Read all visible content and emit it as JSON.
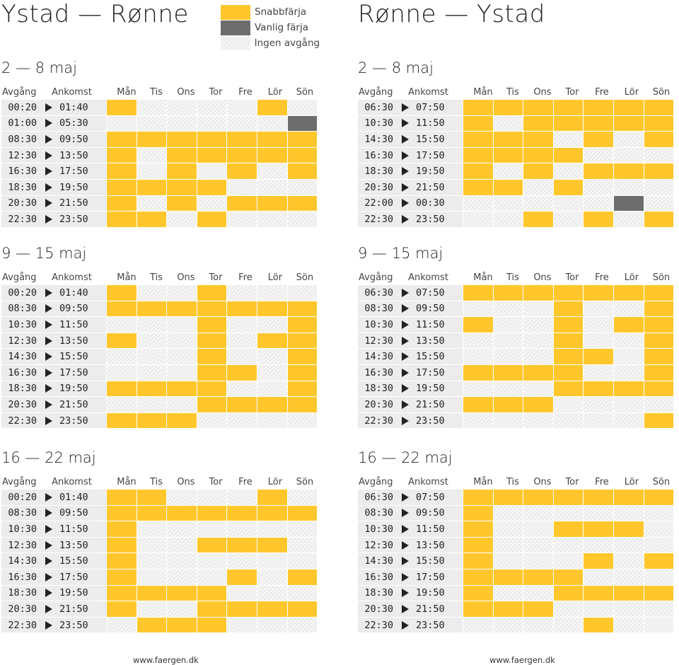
{
  "legend": {
    "fast": "Snabbfärja",
    "regular": "Vanlig färja",
    "none": "Ingen avgång",
    "colors": {
      "fast": "#ffc72c",
      "regular": "#6d6d6d",
      "none": "#e6e6e6"
    }
  },
  "headers": {
    "dep": "Avgång",
    "arr": "Ankomst",
    "days": [
      "Mån",
      "Tis",
      "Ons",
      "Tor",
      "Fre",
      "Lör",
      "Sön"
    ]
  },
  "cell_codes": {
    "f": "Snabbfärja",
    "v": "Vanlig färja",
    "n": "Ingen avgång"
  },
  "routes": [
    {
      "title": "Ystad — Rønne",
      "footer": "www.faergen.dk",
      "weeks": [
        {
          "title": "2 — 8 maj",
          "rows": [
            {
              "dep": "00:20",
              "arr": "01:40",
              "days": [
                "f",
                "n",
                "n",
                "n",
                "n",
                "f",
                "n"
              ]
            },
            {
              "dep": "01:00",
              "arr": "05:30",
              "days": [
                "n",
                "n",
                "n",
                "n",
                "n",
                "n",
                "v"
              ]
            },
            {
              "dep": "08:30",
              "arr": "09:50",
              "days": [
                "f",
                "f",
                "f",
                "f",
                "f",
                "f",
                "f"
              ]
            },
            {
              "dep": "12:30",
              "arr": "13:50",
              "days": [
                "f",
                "n",
                "f",
                "f",
                "f",
                "f",
                "f"
              ]
            },
            {
              "dep": "16:30",
              "arr": "17:50",
              "days": [
                "f",
                "n",
                "f",
                "n",
                "f",
                "n",
                "f"
              ]
            },
            {
              "dep": "18:30",
              "arr": "19:50",
              "days": [
                "f",
                "f",
                "f",
                "f",
                "n",
                "n",
                "n"
              ]
            },
            {
              "dep": "20:30",
              "arr": "21:50",
              "days": [
                "f",
                "n",
                "f",
                "n",
                "f",
                "f",
                "f"
              ]
            },
            {
              "dep": "22:30",
              "arr": "23:50",
              "days": [
                "f",
                "f",
                "n",
                "f",
                "n",
                "n",
                "n"
              ]
            }
          ]
        },
        {
          "title": "9 — 15 maj",
          "rows": [
            {
              "dep": "00:20",
              "arr": "01:40",
              "days": [
                "f",
                "n",
                "n",
                "f",
                "n",
                "n",
                "n"
              ]
            },
            {
              "dep": "08:30",
              "arr": "09:50",
              "days": [
                "f",
                "f",
                "f",
                "f",
                "f",
                "f",
                "f"
              ]
            },
            {
              "dep": "10:30",
              "arr": "11:50",
              "days": [
                "n",
                "n",
                "n",
                "f",
                "n",
                "n",
                "f"
              ]
            },
            {
              "dep": "12:30",
              "arr": "13:50",
              "days": [
                "f",
                "n",
                "n",
                "f",
                "n",
                "f",
                "f"
              ]
            },
            {
              "dep": "14:30",
              "arr": "15:50",
              "days": [
                "n",
                "n",
                "n",
                "f",
                "n",
                "n",
                "f"
              ]
            },
            {
              "dep": "16:30",
              "arr": "17:50",
              "days": [
                "n",
                "n",
                "n",
                "f",
                "f",
                "n",
                "f"
              ]
            },
            {
              "dep": "18:30",
              "arr": "19:50",
              "days": [
                "f",
                "f",
                "f",
                "f",
                "n",
                "n",
                "f"
              ]
            },
            {
              "dep": "20:30",
              "arr": "21:50",
              "days": [
                "n",
                "n",
                "n",
                "f",
                "f",
                "f",
                "f"
              ]
            },
            {
              "dep": "22:30",
              "arr": "23:50",
              "days": [
                "f",
                "f",
                "f",
                "n",
                "n",
                "n",
                "n"
              ]
            }
          ]
        },
        {
          "title": "16 — 22 maj",
          "rows": [
            {
              "dep": "00:20",
              "arr": "01:40",
              "days": [
                "f",
                "f",
                "n",
                "n",
                "n",
                "f",
                "n"
              ]
            },
            {
              "dep": "08:30",
              "arr": "09:50",
              "days": [
                "f",
                "f",
                "f",
                "f",
                "f",
                "f",
                "f"
              ]
            },
            {
              "dep": "10:30",
              "arr": "11:50",
              "days": [
                "f",
                "n",
                "n",
                "n",
                "n",
                "n",
                "n"
              ]
            },
            {
              "dep": "12:30",
              "arr": "13:50",
              "days": [
                "f",
                "n",
                "n",
                "f",
                "f",
                "f",
                "n"
              ]
            },
            {
              "dep": "14:30",
              "arr": "15:50",
              "days": [
                "f",
                "n",
                "n",
                "n",
                "n",
                "n",
                "n"
              ]
            },
            {
              "dep": "16:30",
              "arr": "17:50",
              "days": [
                "f",
                "n",
                "n",
                "n",
                "f",
                "n",
                "f"
              ]
            },
            {
              "dep": "18:30",
              "arr": "19:50",
              "days": [
                "f",
                "f",
                "f",
                "f",
                "n",
                "n",
                "n"
              ]
            },
            {
              "dep": "20:30",
              "arr": "21:50",
              "days": [
                "f",
                "n",
                "n",
                "f",
                "f",
                "f",
                "f"
              ]
            },
            {
              "dep": "22:30",
              "arr": "23:50",
              "days": [
                "n",
                "f",
                "f",
                "f",
                "n",
                "n",
                "n"
              ]
            }
          ]
        }
      ]
    },
    {
      "title": "Rønne — Ystad",
      "footer": "www.faergen.dk",
      "weeks": [
        {
          "title": "2 — 8 maj",
          "rows": [
            {
              "dep": "06:30",
              "arr": "07:50",
              "days": [
                "f",
                "f",
                "f",
                "f",
                "f",
                "f",
                "f"
              ]
            },
            {
              "dep": "10:30",
              "arr": "11:50",
              "days": [
                "f",
                "n",
                "f",
                "f",
                "f",
                "f",
                "f"
              ]
            },
            {
              "dep": "14:30",
              "arr": "15:50",
              "days": [
                "f",
                "f",
                "f",
                "n",
                "f",
                "n",
                "f"
              ]
            },
            {
              "dep": "16:30",
              "arr": "17:50",
              "days": [
                "f",
                "f",
                "f",
                "f",
                "n",
                "n",
                "n"
              ]
            },
            {
              "dep": "18:30",
              "arr": "19:50",
              "days": [
                "f",
                "n",
                "f",
                "n",
                "f",
                "f",
                "f"
              ]
            },
            {
              "dep": "20:30",
              "arr": "21:50",
              "days": [
                "f",
                "f",
                "n",
                "f",
                "n",
                "n",
                "n"
              ]
            },
            {
              "dep": "22:00",
              "arr": "00:30",
              "days": [
                "n",
                "n",
                "n",
                "n",
                "n",
                "v",
                "n"
              ]
            },
            {
              "dep": "22:30",
              "arr": "23:50",
              "days": [
                "n",
                "n",
                "f",
                "n",
                "f",
                "n",
                "f"
              ]
            }
          ]
        },
        {
          "title": "9 — 15 maj",
          "rows": [
            {
              "dep": "06:30",
              "arr": "07:50",
              "days": [
                "f",
                "f",
                "f",
                "f",
                "f",
                "f",
                "f"
              ]
            },
            {
              "dep": "08:30",
              "arr": "09:50",
              "days": [
                "n",
                "n",
                "n",
                "f",
                "n",
                "n",
                "f"
              ]
            },
            {
              "dep": "10:30",
              "arr": "11:50",
              "days": [
                "f",
                "n",
                "n",
                "f",
                "n",
                "f",
                "f"
              ]
            },
            {
              "dep": "12:30",
              "arr": "13:50",
              "days": [
                "n",
                "n",
                "n",
                "f",
                "n",
                "n",
                "f"
              ]
            },
            {
              "dep": "14:30",
              "arr": "15:50",
              "days": [
                "n",
                "n",
                "n",
                "f",
                "f",
                "n",
                "f"
              ]
            },
            {
              "dep": "16:30",
              "arr": "17:50",
              "days": [
                "f",
                "f",
                "f",
                "f",
                "n",
                "n",
                "f"
              ]
            },
            {
              "dep": "18:30",
              "arr": "19:50",
              "days": [
                "n",
                "n",
                "n",
                "f",
                "f",
                "f",
                "f"
              ]
            },
            {
              "dep": "20:30",
              "arr": "21:50",
              "days": [
                "f",
                "f",
                "f",
                "n",
                "n",
                "n",
                "n"
              ]
            },
            {
              "dep": "22:30",
              "arr": "23:50",
              "days": [
                "n",
                "n",
                "n",
                "n",
                "n",
                "n",
                "f"
              ]
            }
          ]
        },
        {
          "title": "16 — 22 maj",
          "rows": [
            {
              "dep": "06:30",
              "arr": "07:50",
              "days": [
                "f",
                "f",
                "f",
                "f",
                "f",
                "f",
                "f"
              ]
            },
            {
              "dep": "08:30",
              "arr": "09:50",
              "days": [
                "f",
                "n",
                "n",
                "n",
                "n",
                "n",
                "n"
              ]
            },
            {
              "dep": "10:30",
              "arr": "11:50",
              "days": [
                "f",
                "n",
                "n",
                "f",
                "f",
                "f",
                "n"
              ]
            },
            {
              "dep": "12:30",
              "arr": "13:50",
              "days": [
                "f",
                "n",
                "n",
                "n",
                "n",
                "n",
                "n"
              ]
            },
            {
              "dep": "14:30",
              "arr": "15:50",
              "days": [
                "f",
                "n",
                "n",
                "n",
                "f",
                "n",
                "f"
              ]
            },
            {
              "dep": "16:30",
              "arr": "17:50",
              "days": [
                "f",
                "f",
                "f",
                "f",
                "n",
                "n",
                "n"
              ]
            },
            {
              "dep": "18:30",
              "arr": "19:50",
              "days": [
                "f",
                "n",
                "n",
                "f",
                "f",
                "f",
                "f"
              ]
            },
            {
              "dep": "20:30",
              "arr": "21:50",
              "days": [
                "f",
                "f",
                "f",
                "n",
                "n",
                "n",
                "n"
              ]
            },
            {
              "dep": "22:30",
              "arr": "23:50",
              "days": [
                "n",
                "n",
                "n",
                "n",
                "f",
                "n",
                "n"
              ]
            }
          ]
        }
      ]
    }
  ]
}
